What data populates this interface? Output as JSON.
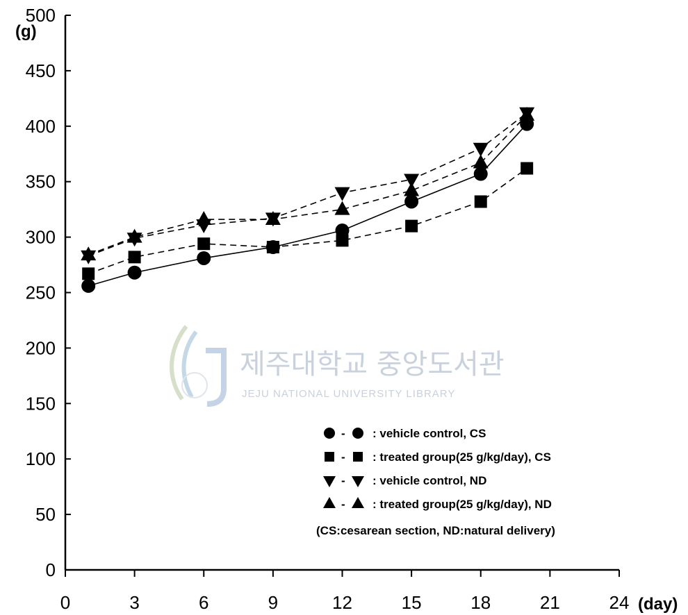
{
  "chart_data": {
    "type": "line",
    "y_unit": "(g)",
    "x_unit": "(day)",
    "xlim": [
      0,
      24
    ],
    "ylim": [
      0,
      500
    ],
    "x_ticks": [
      0,
      3,
      6,
      9,
      12,
      15,
      18,
      21,
      24
    ],
    "y_ticks": [
      0,
      50,
      100,
      150,
      200,
      250,
      300,
      350,
      400,
      450,
      500
    ],
    "x": [
      1,
      3,
      6,
      9,
      12,
      15,
      18,
      20
    ],
    "series": [
      {
        "name": "vehicle control, CS",
        "marker": "circle",
        "line": "solid",
        "values": [
          256,
          268,
          281,
          291,
          306,
          332,
          357,
          402
        ]
      },
      {
        "name": "treated group(25 g/kg/day), CS",
        "marker": "square",
        "line": "dashed",
        "values": [
          267,
          282,
          294,
          291,
          297,
          310,
          332,
          362
        ]
      },
      {
        "name": "vehicle control, ND",
        "marker": "triangle-down",
        "line": "dashed",
        "values": [
          283,
          299,
          311,
          317,
          340,
          352,
          380,
          412
        ]
      },
      {
        "name": "treated group(25 g/kg/day), ND",
        "marker": "triangle-up",
        "line": "dashed",
        "values": [
          284,
          300,
          316,
          316,
          325,
          342,
          367,
          410
        ]
      }
    ],
    "legend": {
      "placement": "lower-right",
      "separator": "-",
      "entries": [
        ": vehicle control, CS",
        ": treated group(25 g/kg/day), CS",
        ": vehicle control, ND",
        ": treated group(25 g/kg/day), ND"
      ],
      "note": "(CS:cesarean section, ND:natural delivery)"
    },
    "grid": false
  },
  "watermark": {
    "korean": "제주대학교 중앙도서관",
    "english": "JEJU NATIONAL UNIVERSITY LIBRARY",
    "seal_text": "JEJU"
  },
  "colors": {
    "ink": "#000000",
    "watermark": "#c9d1dc"
  }
}
